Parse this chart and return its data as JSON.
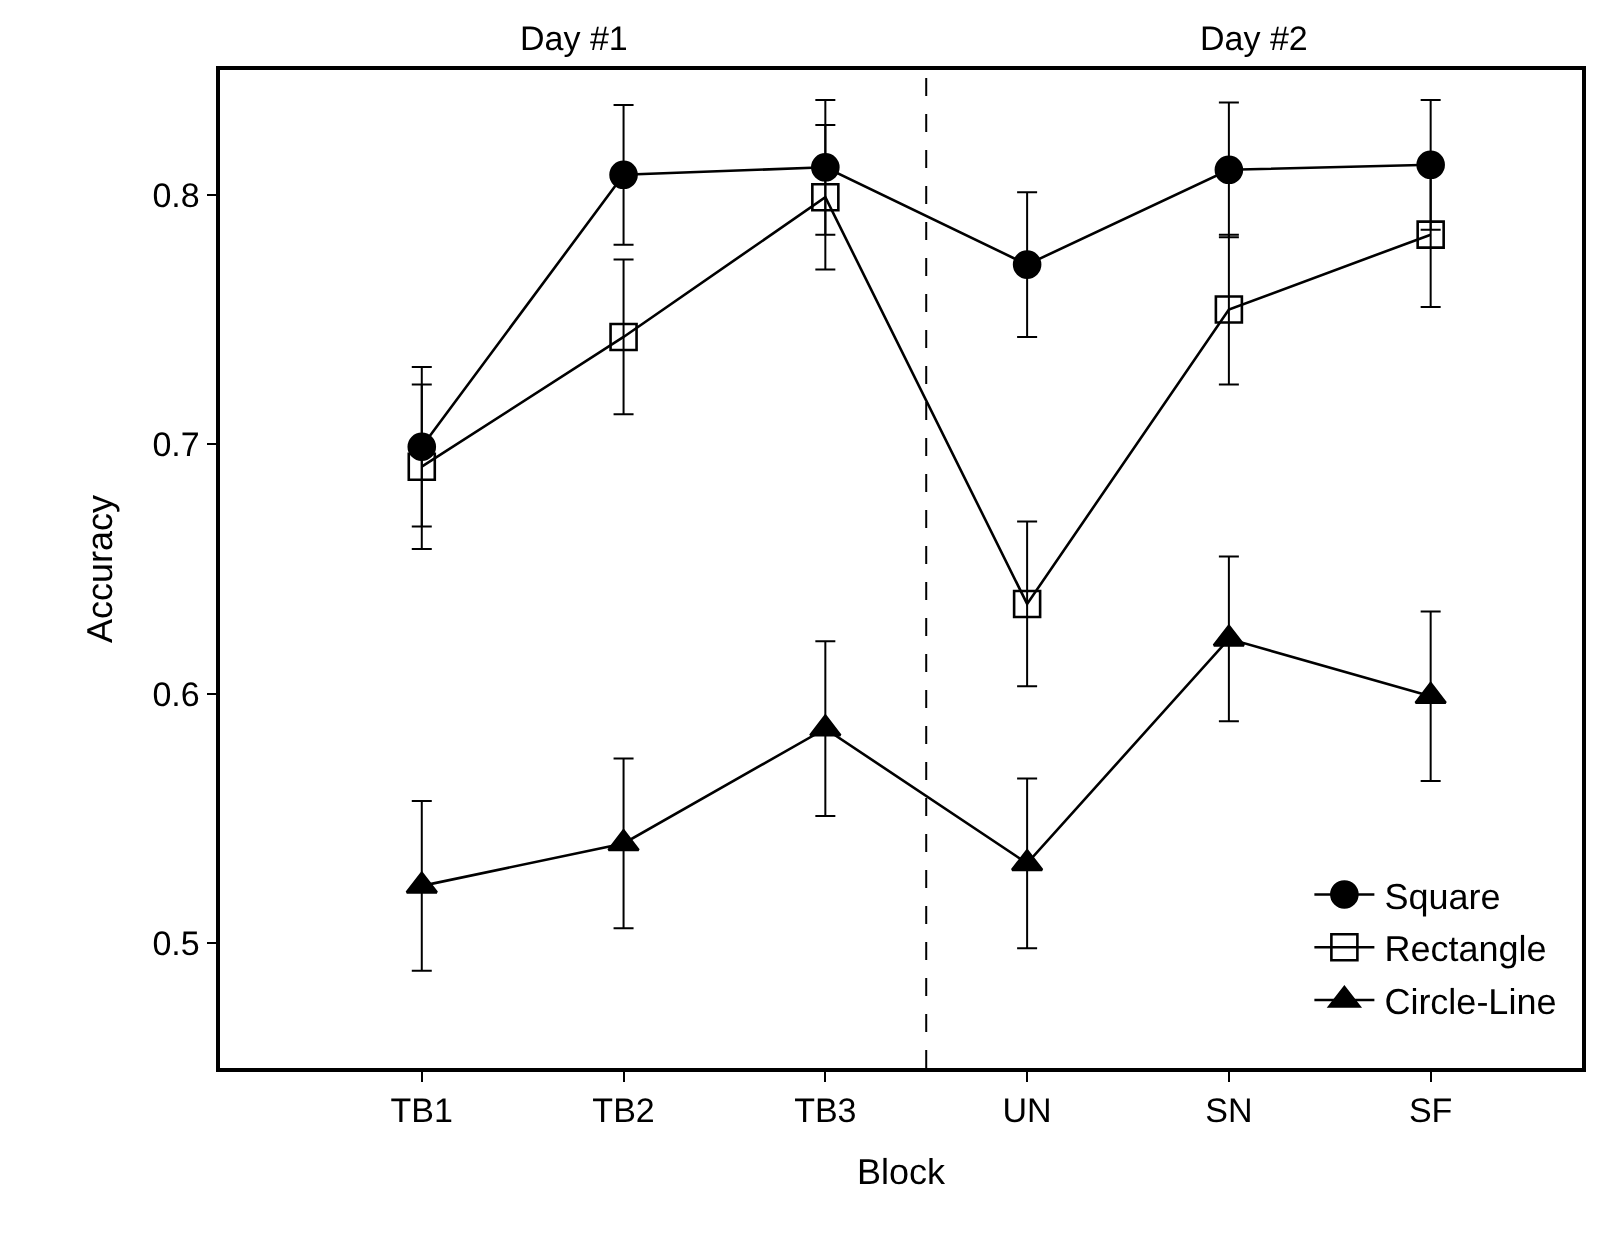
{
  "chart_data": {
    "type": "line",
    "xlabel": "Block",
    "ylabel": "Accuracy",
    "categories": [
      "TB1",
      "TB2",
      "TB3",
      "UN",
      "SN",
      "SF"
    ],
    "ylim": [
      0.45,
      0.85
    ],
    "yticks": [
      0.5,
      0.6,
      0.7,
      0.8
    ],
    "series": [
      {
        "name": "Square",
        "color": "#000000",
        "marker": "circle",
        "values": [
          0.699,
          0.808,
          0.811,
          0.772,
          0.81,
          0.812
        ],
        "errors": [
          0.032,
          0.028,
          0.027,
          0.029,
          0.027,
          0.026
        ]
      },
      {
        "name": "Rectangle",
        "color": "#000000",
        "marker": "square-open",
        "values": [
          0.691,
          0.743,
          0.799,
          0.636,
          0.754,
          0.784
        ],
        "errors": [
          0.033,
          0.031,
          0.029,
          0.033,
          0.03,
          0.029
        ]
      },
      {
        "name": "Circle-Line",
        "color": "#000000",
        "marker": "triangle",
        "values": [
          0.523,
          0.54,
          0.586,
          0.532,
          0.622,
          0.599
        ],
        "errors": [
          0.034,
          0.034,
          0.035,
          0.034,
          0.033,
          0.034
        ]
      }
    ],
    "annotations": [
      "Day #1",
      "Day #2"
    ],
    "legend": "bottom right",
    "line_style": "solid"
  }
}
